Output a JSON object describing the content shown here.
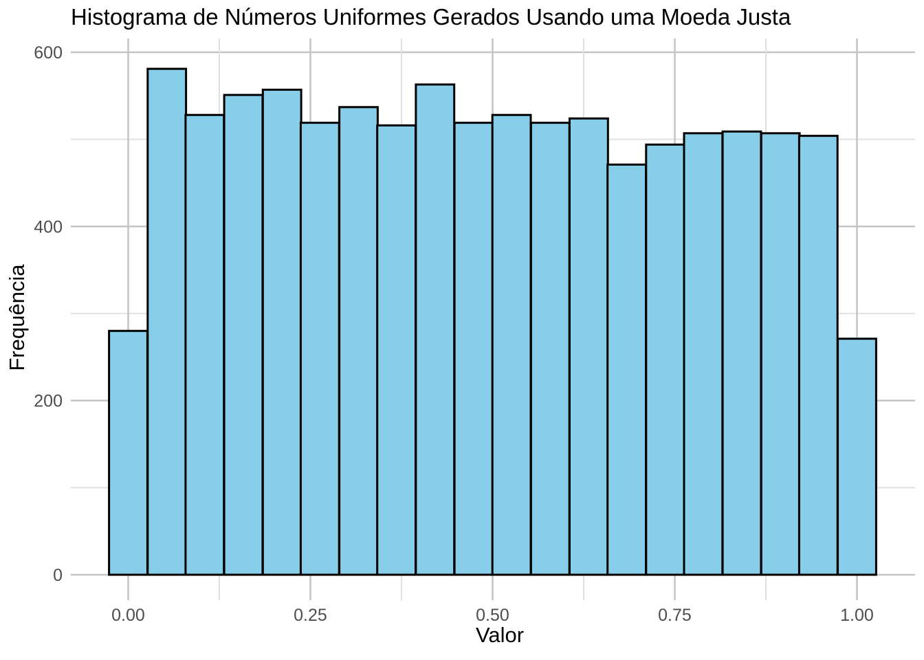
{
  "chart_data": {
    "type": "bar",
    "chart_kind": "histogram",
    "title": "Histograma de Números Uniformes Gerados Usando uma Moeda Justa",
    "xlabel": "Valor",
    "ylabel": "Frequência",
    "legend": "none",
    "grid": true,
    "x_axis": {
      "ticks": [
        0,
        0.25,
        0.5,
        0.75,
        1.0
      ],
      "tick_labels": [
        "0.00",
        "0.25",
        "0.50",
        "0.75",
        "1.00"
      ],
      "minor_ticks": [
        0.125,
        0.375,
        0.625,
        0.875
      ],
      "range": [
        -0.054,
        1.08
      ]
    },
    "y_axis": {
      "ticks": [
        0,
        200,
        400,
        600
      ],
      "tick_labels": [
        "0",
        "200",
        "400",
        "600"
      ],
      "minor_ticks": [
        100,
        300,
        500
      ],
      "range": [
        0,
        616
      ]
    },
    "bins": {
      "bin_width": 0.0526,
      "centers": [
        0.0,
        0.053,
        0.105,
        0.158,
        0.211,
        0.263,
        0.316,
        0.368,
        0.421,
        0.474,
        0.526,
        0.579,
        0.632,
        0.684,
        0.737,
        0.789,
        0.842,
        0.895,
        0.947,
        1.0
      ],
      "counts": [
        280,
        581,
        528,
        551,
        557,
        519,
        537,
        516,
        563,
        519,
        528,
        519,
        524,
        471,
        494,
        507,
        509,
        507,
        504,
        271
      ]
    },
    "colors": {
      "bar_fill": "#87CEEB",
      "bar_stroke": "#000000",
      "grid_major": "#C4C4C4",
      "grid_minor": "#E1E1E1",
      "tick_label": "#4D4D4D",
      "text": "#000000",
      "background": "#FFFFFF"
    }
  }
}
